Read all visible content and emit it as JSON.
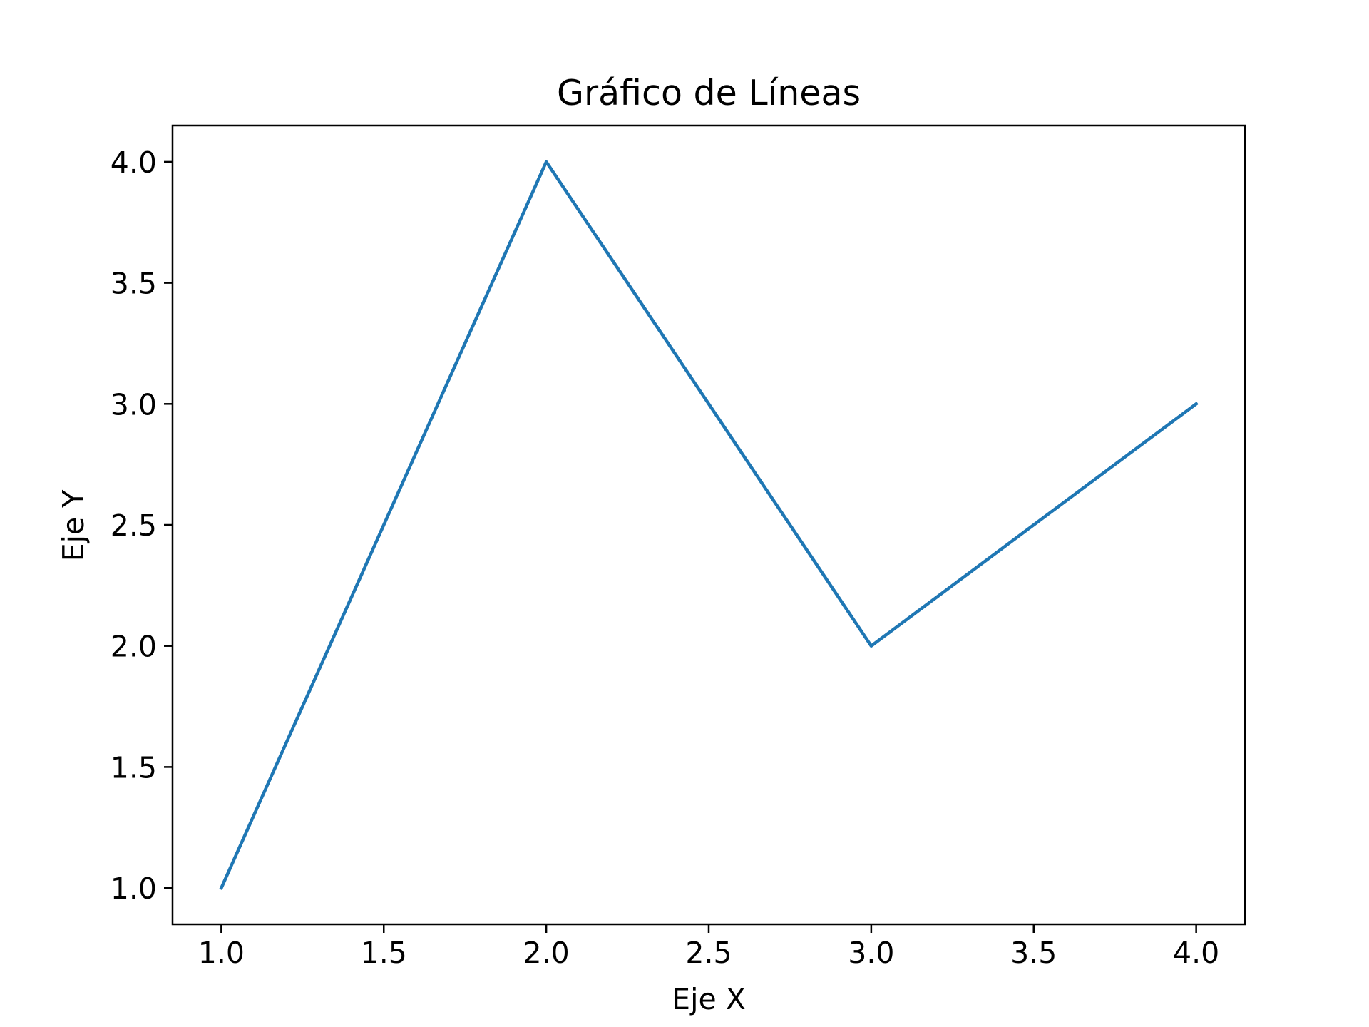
{
  "chart_data": {
    "type": "line",
    "title": "Gráfico de Líneas",
    "xlabel": "Eje X",
    "ylabel": "Eje Y",
    "x": [
      1.0,
      2.0,
      3.0,
      4.0
    ],
    "series": [
      {
        "values": [
          1.0,
          4.0,
          2.0,
          3.0
        ],
        "color": "#1f77b4"
      }
    ],
    "xlim": [
      0.85,
      4.15
    ],
    "ylim": [
      0.85,
      4.15
    ],
    "xticks": [
      1.0,
      1.5,
      2.0,
      2.5,
      3.0,
      3.5,
      4.0
    ],
    "xtick_labels": [
      "1.0",
      "1.5",
      "2.0",
      "2.5",
      "3.0",
      "3.5",
      "4.0"
    ],
    "yticks": [
      1.0,
      1.5,
      2.0,
      2.5,
      3.0,
      3.5,
      4.0
    ],
    "ytick_labels": [
      "1.0",
      "1.5",
      "2.0",
      "2.5",
      "3.0",
      "3.5",
      "4.0"
    ],
    "grid": false,
    "legend": "none"
  }
}
